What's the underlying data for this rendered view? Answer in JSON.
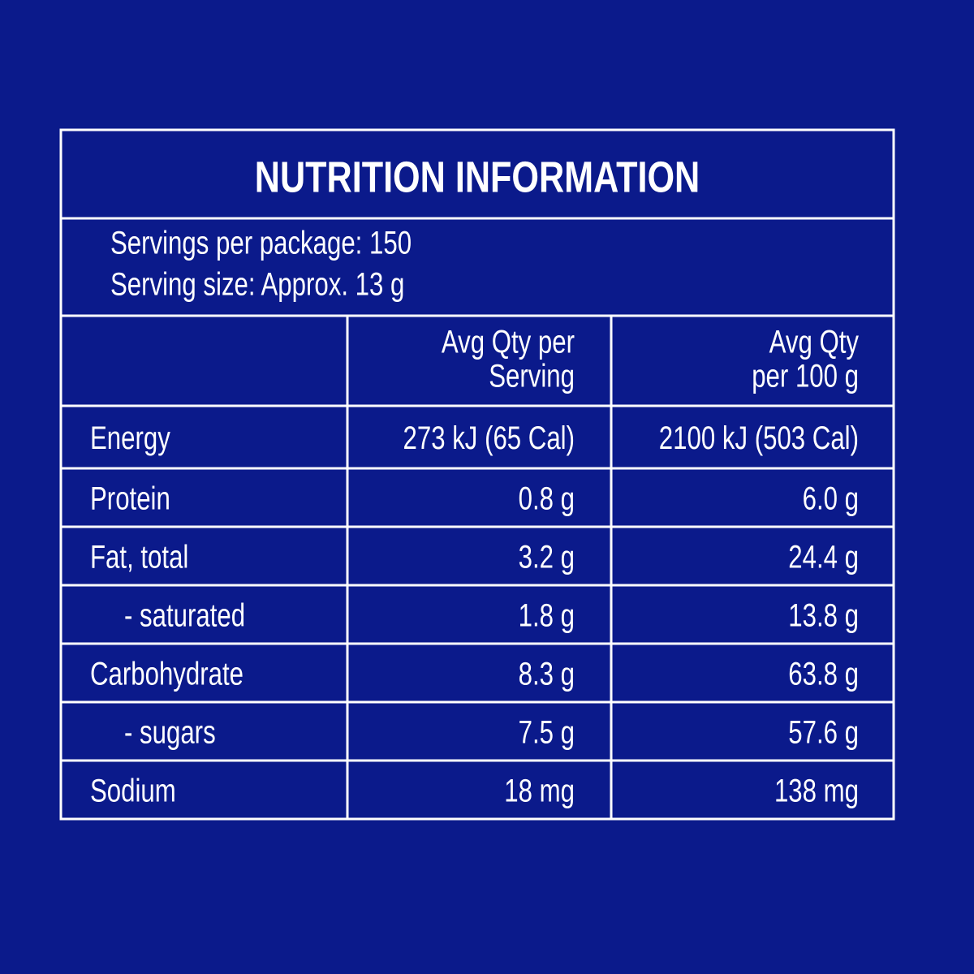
{
  "table": {
    "title": "NUTRITION INFORMATION",
    "servings": [
      "Servings per package: 150",
      "Serving size: Approx. 13 g"
    ],
    "header": [
      [
        "Avg Qty per",
        "Serving"
      ],
      [
        "Avg Qty",
        "per 100 g"
      ]
    ],
    "rows": [
      [
        "Energy",
        "273 kJ (65 Cal)",
        "2100 kJ (503 Cal)"
      ],
      [
        "Protein",
        "0.8 g",
        "6.0 g"
      ],
      [
        "Fat, total",
        "3.2 g",
        "24.4 g"
      ],
      [
        "- saturated",
        "1.8 g",
        "13.8 g"
      ],
      [
        "Carbohydrate",
        "8.3 g",
        "63.8 g"
      ],
      [
        "- sugars",
        "7.5 g",
        "57.6 g"
      ],
      [
        "Sodium",
        "18 mg",
        "138 mg"
      ]
    ]
  }
}
